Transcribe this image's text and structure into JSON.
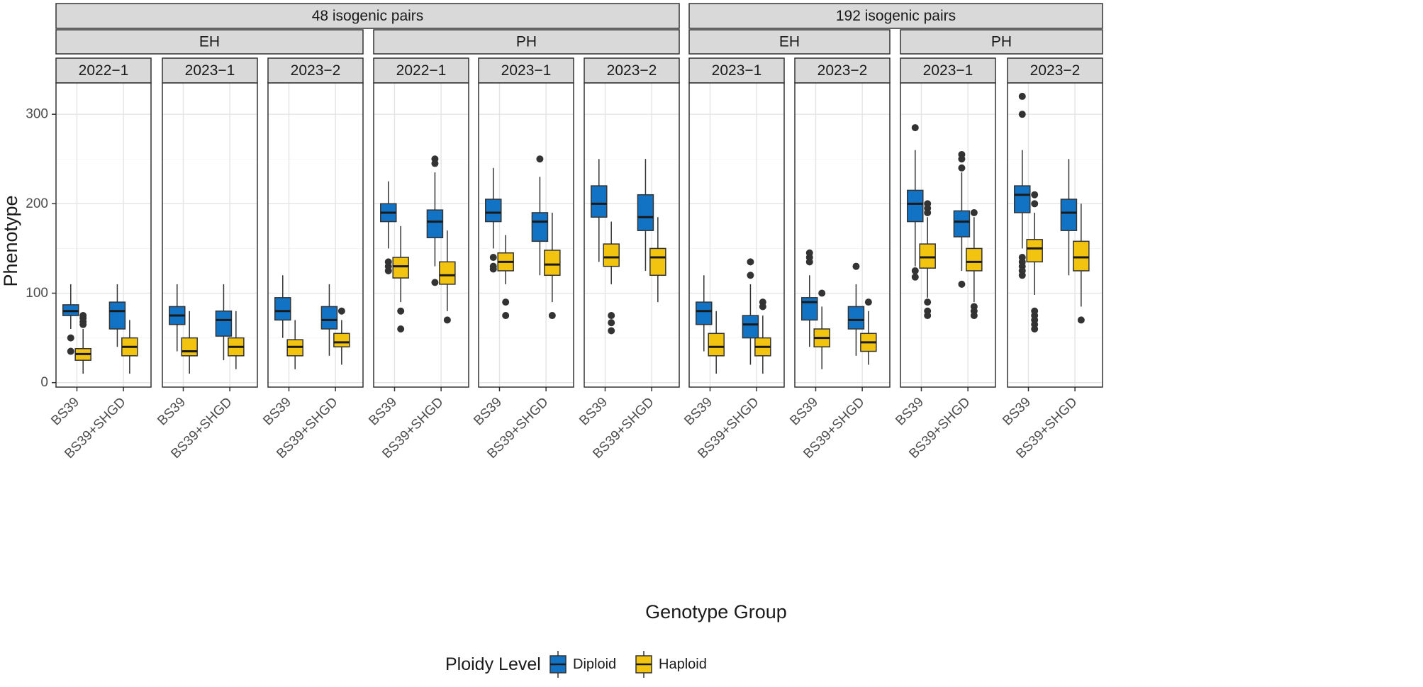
{
  "chart_data": {
    "type": "boxplot",
    "title": "",
    "xlabel": "Genotype Group",
    "ylabel": "Phenotype",
    "ylim": [
      -5,
      335
    ],
    "yticks": [
      0,
      100,
      200,
      300
    ],
    "categories": [
      "BS39",
      "BS39+SHGD"
    ],
    "legend": {
      "title": "Ploidy Level",
      "position": "bottom",
      "entries": [
        {
          "name": "Diploid",
          "color": "#1273c5"
        },
        {
          "name": "Haploid",
          "color": "#f2c40f"
        }
      ]
    },
    "colors": {
      "Diploid": "#1273c5",
      "Haploid": "#f2c40f"
    },
    "facet_groups": [
      {
        "label": "48 isogenic pairs",
        "traits": [
          {
            "label": "EH",
            "years": [
              "2022−1",
              "2023−1",
              "2023−2"
            ]
          },
          {
            "label": "PH",
            "years": [
              "2022−1",
              "2023−1",
              "2023−2"
            ]
          }
        ]
      },
      {
        "label": "192 isogenic pairs",
        "traits": [
          {
            "label": "EH",
            "years": [
              "2023−1",
              "2023−2"
            ]
          },
          {
            "label": "PH",
            "years": [
              "2023−1",
              "2023−2"
            ]
          }
        ]
      }
    ],
    "panels": [
      {
        "group": "48 isogenic pairs",
        "trait": "EH",
        "year": "2022−1",
        "boxes": [
          {
            "category": "BS39",
            "ploidy": "Diploid",
            "min": 60,
            "q1": 75,
            "median": 80,
            "q3": 87,
            "max": 110,
            "outliers": [
              50,
              35
            ]
          },
          {
            "category": "BS39",
            "ploidy": "Haploid",
            "min": 10,
            "q1": 25,
            "median": 32,
            "q3": 38,
            "max": 60,
            "outliers": [
              75,
              72,
              68,
              65
            ]
          },
          {
            "category": "BS39+SHGD",
            "ploidy": "Diploid",
            "min": 40,
            "q1": 60,
            "median": 80,
            "q3": 90,
            "max": 110,
            "outliers": []
          },
          {
            "category": "BS39+SHGD",
            "ploidy": "Haploid",
            "min": 10,
            "q1": 30,
            "median": 40,
            "q3": 50,
            "max": 70,
            "outliers": []
          }
        ]
      },
      {
        "group": "48 isogenic pairs",
        "trait": "EH",
        "year": "2023−1",
        "boxes": [
          {
            "category": "BS39",
            "ploidy": "Diploid",
            "min": 35,
            "q1": 65,
            "median": 75,
            "q3": 85,
            "max": 110,
            "outliers": []
          },
          {
            "category": "BS39",
            "ploidy": "Haploid",
            "min": 10,
            "q1": 30,
            "median": 35,
            "q3": 50,
            "max": 80,
            "outliers": []
          },
          {
            "category": "BS39+SHGD",
            "ploidy": "Diploid",
            "min": 25,
            "q1": 52,
            "median": 70,
            "q3": 80,
            "max": 110,
            "outliers": []
          },
          {
            "category": "BS39+SHGD",
            "ploidy": "Haploid",
            "min": 15,
            "q1": 30,
            "median": 40,
            "q3": 50,
            "max": 80,
            "outliers": []
          }
        ]
      },
      {
        "group": "48 isogenic pairs",
        "trait": "EH",
        "year": "2023−2",
        "boxes": [
          {
            "category": "BS39",
            "ploidy": "Diploid",
            "min": 50,
            "q1": 70,
            "median": 80,
            "q3": 95,
            "max": 120,
            "outliers": []
          },
          {
            "category": "BS39",
            "ploidy": "Haploid",
            "min": 15,
            "q1": 30,
            "median": 40,
            "q3": 48,
            "max": 70,
            "outliers": []
          },
          {
            "category": "BS39+SHGD",
            "ploidy": "Diploid",
            "min": 30,
            "q1": 60,
            "median": 70,
            "q3": 85,
            "max": 110,
            "outliers": []
          },
          {
            "category": "BS39+SHGD",
            "ploidy": "Haploid",
            "min": 20,
            "q1": 40,
            "median": 45,
            "q3": 55,
            "max": 70,
            "outliers": [
              80
            ]
          }
        ]
      },
      {
        "group": "48 isogenic pairs",
        "trait": "PH",
        "year": "2022−1",
        "boxes": [
          {
            "category": "BS39",
            "ploidy": "Diploid",
            "min": 150,
            "q1": 180,
            "median": 190,
            "q3": 200,
            "max": 225,
            "outliers": [
              135,
              130,
              125
            ]
          },
          {
            "category": "BS39",
            "ploidy": "Haploid",
            "min": 90,
            "q1": 117,
            "median": 130,
            "q3": 140,
            "max": 175,
            "outliers": [
              80,
              60
            ]
          },
          {
            "category": "BS39+SHGD",
            "ploidy": "Diploid",
            "min": 130,
            "q1": 162,
            "median": 180,
            "q3": 193,
            "max": 235,
            "outliers": [
              250,
              245,
              112
            ]
          },
          {
            "category": "BS39+SHGD",
            "ploidy": "Haploid",
            "min": 80,
            "q1": 110,
            "median": 120,
            "q3": 135,
            "max": 170,
            "outliers": [
              70
            ]
          }
        ]
      },
      {
        "group": "48 isogenic pairs",
        "trait": "PH",
        "year": "2023−1",
        "boxes": [
          {
            "category": "BS39",
            "ploidy": "Diploid",
            "min": 150,
            "q1": 180,
            "median": 190,
            "q3": 205,
            "max": 240,
            "outliers": [
              140,
              130,
              127
            ]
          },
          {
            "category": "BS39",
            "ploidy": "Haploid",
            "min": 110,
            "q1": 125,
            "median": 135,
            "q3": 145,
            "max": 165,
            "outliers": [
              90,
              75
            ]
          },
          {
            "category": "BS39+SHGD",
            "ploidy": "Diploid",
            "min": 120,
            "q1": 158,
            "median": 180,
            "q3": 190,
            "max": 230,
            "outliers": [
              250
            ]
          },
          {
            "category": "BS39+SHGD",
            "ploidy": "Haploid",
            "min": 90,
            "q1": 120,
            "median": 132,
            "q3": 148,
            "max": 190,
            "outliers": [
              75
            ]
          }
        ]
      },
      {
        "group": "48 isogenic pairs",
        "trait": "PH",
        "year": "2023−2",
        "boxes": [
          {
            "category": "BS39",
            "ploidy": "Diploid",
            "min": 135,
            "q1": 185,
            "median": 200,
            "q3": 220,
            "max": 250,
            "outliers": []
          },
          {
            "category": "BS39",
            "ploidy": "Haploid",
            "min": 110,
            "q1": 130,
            "median": 140,
            "q3": 155,
            "max": 180,
            "outliers": [
              75,
              67,
              58
            ]
          },
          {
            "category": "BS39+SHGD",
            "ploidy": "Diploid",
            "min": 125,
            "q1": 170,
            "median": 185,
            "q3": 210,
            "max": 250,
            "outliers": []
          },
          {
            "category": "BS39+SHGD",
            "ploidy": "Haploid",
            "min": 90,
            "q1": 120,
            "median": 140,
            "q3": 150,
            "max": 185,
            "outliers": []
          }
        ]
      },
      {
        "group": "192 isogenic pairs",
        "trait": "EH",
        "year": "2023−1",
        "boxes": [
          {
            "category": "BS39",
            "ploidy": "Diploid",
            "min": 35,
            "q1": 65,
            "median": 80,
            "q3": 90,
            "max": 120,
            "outliers": []
          },
          {
            "category": "BS39",
            "ploidy": "Haploid",
            "min": 10,
            "q1": 30,
            "median": 40,
            "q3": 55,
            "max": 80,
            "outliers": []
          },
          {
            "category": "BS39+SHGD",
            "ploidy": "Diploid",
            "min": 20,
            "q1": 50,
            "median": 65,
            "q3": 75,
            "max": 110,
            "outliers": [
              135,
              120
            ]
          },
          {
            "category": "BS39+SHGD",
            "ploidy": "Haploid",
            "min": 10,
            "q1": 30,
            "median": 40,
            "q3": 50,
            "max": 75,
            "outliers": [
              90,
              85
            ]
          }
        ]
      },
      {
        "group": "192 isogenic pairs",
        "trait": "EH",
        "year": "2023−2",
        "boxes": [
          {
            "category": "BS39",
            "ploidy": "Diploid",
            "min": 40,
            "q1": 70,
            "median": 90,
            "q3": 95,
            "max": 120,
            "outliers": [
              145,
              140,
              135
            ]
          },
          {
            "category": "BS39",
            "ploidy": "Haploid",
            "min": 15,
            "q1": 40,
            "median": 50,
            "q3": 60,
            "max": 85,
            "outliers": [
              100
            ]
          },
          {
            "category": "BS39+SHGD",
            "ploidy": "Diploid",
            "min": 30,
            "q1": 60,
            "median": 70,
            "q3": 85,
            "max": 110,
            "outliers": [
              130
            ]
          },
          {
            "category": "BS39+SHGD",
            "ploidy": "Haploid",
            "min": 20,
            "q1": 35,
            "median": 45,
            "q3": 55,
            "max": 80,
            "outliers": [
              90
            ]
          }
        ]
      },
      {
        "group": "192 isogenic pairs",
        "trait": "PH",
        "year": "2023−1",
        "boxes": [
          {
            "category": "BS39",
            "ploidy": "Diploid",
            "min": 130,
            "q1": 180,
            "median": 200,
            "q3": 215,
            "max": 260,
            "outliers": [
              285,
              125,
              118
            ]
          },
          {
            "category": "BS39",
            "ploidy": "Haploid",
            "min": 95,
            "q1": 128,
            "median": 140,
            "q3": 155,
            "max": 185,
            "outliers": [
              200,
              195,
              190,
              90,
              80,
              75
            ]
          },
          {
            "category": "BS39+SHGD",
            "ploidy": "Diploid",
            "min": 125,
            "q1": 163,
            "median": 180,
            "q3": 192,
            "max": 235,
            "outliers": [
              255,
              250,
              240,
              110
            ]
          },
          {
            "category": "BS39+SHGD",
            "ploidy": "Haploid",
            "min": 90,
            "q1": 125,
            "median": 135,
            "q3": 150,
            "max": 185,
            "outliers": [
              190,
              85,
              80,
              75
            ]
          }
        ]
      },
      {
        "group": "192 isogenic pairs",
        "trait": "PH",
        "year": "2023−2",
        "boxes": [
          {
            "category": "BS39",
            "ploidy": "Diploid",
            "min": 150,
            "q1": 190,
            "median": 210,
            "q3": 220,
            "max": 260,
            "outliers": [
              320,
              300,
              140,
              135,
              130,
              125,
              120
            ]
          },
          {
            "category": "BS39",
            "ploidy": "Haploid",
            "min": 98,
            "q1": 135,
            "median": 150,
            "q3": 160,
            "max": 190,
            "outliers": [
              210,
              200,
              80,
              75,
              70,
              65,
              60
            ]
          },
          {
            "category": "BS39+SHGD",
            "ploidy": "Diploid",
            "min": 120,
            "q1": 170,
            "median": 190,
            "q3": 205,
            "max": 250,
            "outliers": []
          },
          {
            "category": "BS39+SHGD",
            "ploidy": "Haploid",
            "min": 85,
            "q1": 125,
            "median": 140,
            "q3": 158,
            "max": 200,
            "outliers": [
              70
            ]
          }
        ]
      }
    ]
  }
}
